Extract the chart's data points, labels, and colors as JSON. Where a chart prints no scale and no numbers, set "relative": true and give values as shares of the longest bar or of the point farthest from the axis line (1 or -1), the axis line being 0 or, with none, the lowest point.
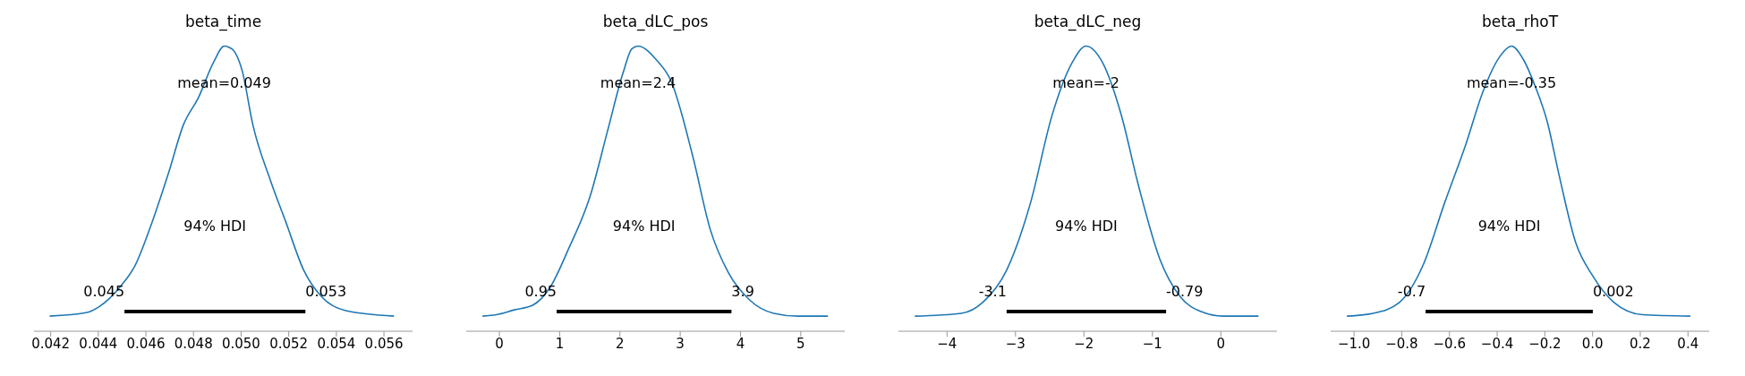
{
  "chart_data": [
    {
      "type": "line",
      "title": "beta_time",
      "relative": true,
      "xlim": [
        0.0413,
        0.0572
      ],
      "xticks": [
        0.042,
        0.044,
        0.046,
        0.048,
        {
          "value": 0.05,
          "label": "0.050"
        },
        0.052,
        0.054,
        0.056
      ],
      "series": [
        {
          "color": "#1f77b4",
          "x": [
            0.04196,
            0.04348,
            0.04405,
            0.04493,
            0.04556,
            0.04619,
            0.04695,
            0.04758,
            0.04821,
            0.04884,
            0.04929,
            0.0496,
            0.05004,
            0.05049,
            0.05124,
            0.05187,
            0.05263,
            0.05339,
            0.0544,
            0.05642
          ],
          "values": [
            0.053,
            0.065,
            0.087,
            0.157,
            0.233,
            0.366,
            0.555,
            0.725,
            0.82,
            0.943,
            1.0,
            0.991,
            0.915,
            0.725,
            0.527,
            0.385,
            0.214,
            0.12,
            0.072,
            0.053
          ]
        },
        {
          "color": "#000000",
          "x": [
            0.0451,
            0.0527
          ],
          "values": [
            0.069,
            0.069
          ]
        }
      ],
      "annotations": [
        "mean=0.049",
        "94% HDI",
        "0.045",
        "0.053"
      ]
    },
    {
      "type": "line",
      "title": "beta_dLC_pos",
      "relative": true,
      "xlim": [
        -0.55,
        5.73
      ],
      "xticks": [
        0,
        1,
        2,
        3,
        4,
        5
      ],
      "series": [
        {
          "color": "#1f77b4",
          "x": [
            -0.28,
            -0.05,
            0.25,
            0.55,
            0.85,
            1.15,
            1.5,
            1.8,
            2.05,
            2.2,
            2.3,
            2.6,
            2.85,
            3.2,
            3.5,
            3.8,
            4.15,
            4.55,
            4.95,
            5.45
          ],
          "values": [
            0.053,
            0.058,
            0.075,
            0.091,
            0.157,
            0.29,
            0.47,
            0.707,
            0.905,
            0.991,
            1.0,
            0.953,
            0.877,
            0.621,
            0.356,
            0.205,
            0.11,
            0.063,
            0.053,
            0.053
          ]
        },
        {
          "color": "#000000",
          "x": [
            0.95,
            3.85
          ],
          "values": [
            0.069,
            0.069
          ]
        }
      ],
      "annotations": [
        "mean=2.4",
        "94% HDI",
        "0.95",
        "3.9"
      ]
    },
    {
      "type": "line",
      "title": "beta_dLC_neg",
      "relative": true,
      "xlim": [
        -4.71,
        0.82
      ],
      "xticks": [
        {
          "value": -4,
          "label": "−4"
        },
        {
          "value": -3,
          "label": "−3"
        },
        {
          "value": -2,
          "label": "−2"
        },
        {
          "value": -1,
          "label": "−1"
        },
        0
      ],
      "series": [
        {
          "color": "#1f77b4",
          "x": [
            -4.47,
            -3.79,
            -3.48,
            -3.13,
            -2.78,
            -2.47,
            -2.17,
            -1.97,
            -1.73,
            -1.46,
            -1.2,
            -0.89,
            -0.59,
            -0.28,
            0.03,
            0.55
          ],
          "values": [
            0.053,
            0.063,
            0.101,
            0.214,
            0.451,
            0.754,
            0.943,
            1.0,
            0.943,
            0.763,
            0.508,
            0.252,
            0.12,
            0.068,
            0.053,
            0.053
          ]
        },
        {
          "color": "#000000",
          "x": [
            -3.13,
            -0.8
          ],
          "values": [
            0.069,
            0.069
          ]
        }
      ],
      "annotations": [
        "mean=-2",
        "94% HDI",
        "-3.1",
        "-0.79"
      ]
    },
    {
      "type": "line",
      "title": "beta_rhoT",
      "relative": true,
      "xlim": [
        -1.098,
        0.489
      ],
      "xticks": [
        {
          "value": -1,
          "label": "−1.0"
        },
        {
          "value": -0.8,
          "label": "−0.8"
        },
        {
          "value": -0.6,
          "label": "−0.6"
        },
        {
          "value": -0.4,
          "label": "−0.4"
        },
        {
          "value": -0.2,
          "label": "−0.2"
        },
        {
          "value": 0,
          "label": "0.0"
        },
        0.2,
        0.4
      ],
      "series": [
        {
          "color": "#1f77b4",
          "x": [
            -1.03,
            -0.92,
            -0.81,
            -0.71,
            -0.62,
            -0.53,
            -0.46,
            -0.39,
            -0.34,
            -0.29,
            -0.24,
            -0.19,
            -0.14,
            -0.07,
            0.0,
            0.09,
            0.21,
            0.41
          ],
          "values": [
            0.053,
            0.063,
            0.101,
            0.233,
            0.451,
            0.659,
            0.839,
            0.962,
            1.0,
            0.953,
            0.858,
            0.735,
            0.546,
            0.309,
            0.195,
            0.101,
            0.058,
            0.053
          ]
        },
        {
          "color": "#000000",
          "x": [
            -0.7,
            0.001
          ],
          "values": [
            0.069,
            0.069
          ]
        }
      ],
      "annotations": [
        "mean=-0.35",
        "94% HDI",
        "-0.7",
        "0.002"
      ]
    }
  ]
}
